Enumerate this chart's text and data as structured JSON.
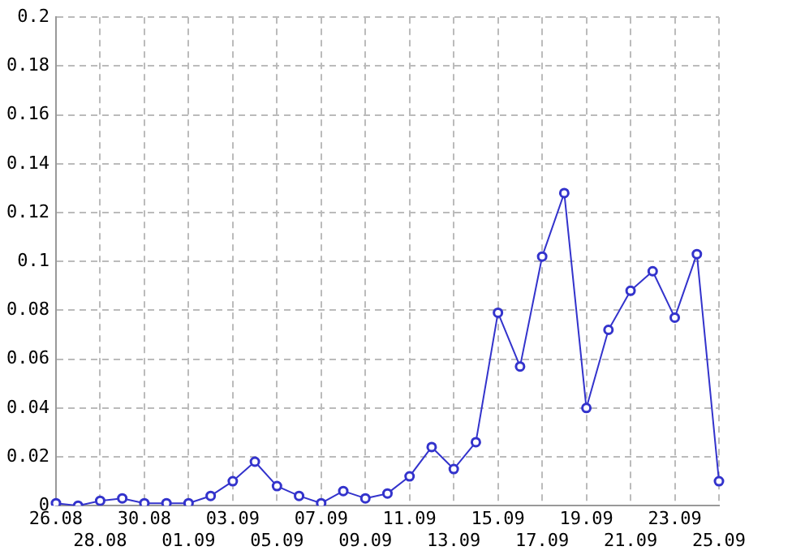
{
  "chart_data": {
    "type": "line",
    "categories": [
      "26.08",
      null,
      "28.08",
      null,
      "30.08",
      null,
      "01.09",
      null,
      "03.09",
      null,
      "05.09",
      null,
      "07.09",
      null,
      "09.09",
      null,
      "11.09",
      null,
      "13.09",
      null,
      "15.09",
      null,
      "17.09",
      null,
      "19.09",
      null,
      "21.09",
      null,
      "23.09",
      null,
      "25.09"
    ],
    "series": [
      {
        "color": "#3333cc",
        "values": [
          0.001,
          0.0,
          0.002,
          0.003,
          0.001,
          0.001,
          0.001,
          0.004,
          0.01,
          0.018,
          0.008,
          0.004,
          0.001,
          0.006,
          0.003,
          0.005,
          0.012,
          0.024,
          0.015,
          0.026,
          0.079,
          0.057,
          0.102,
          0.128,
          0.04,
          0.072,
          0.088,
          0.096,
          0.077,
          0.103,
          0.01
        ]
      }
    ],
    "ylim": [
      0,
      0.2
    ],
    "yticks": [
      0,
      0.02,
      0.04,
      0.06,
      0.08,
      0.1,
      0.12,
      0.14,
      0.16,
      0.18,
      0.2
    ],
    "grid": true,
    "marker": "circle",
    "line_style": "solid",
    "legend": false
  }
}
